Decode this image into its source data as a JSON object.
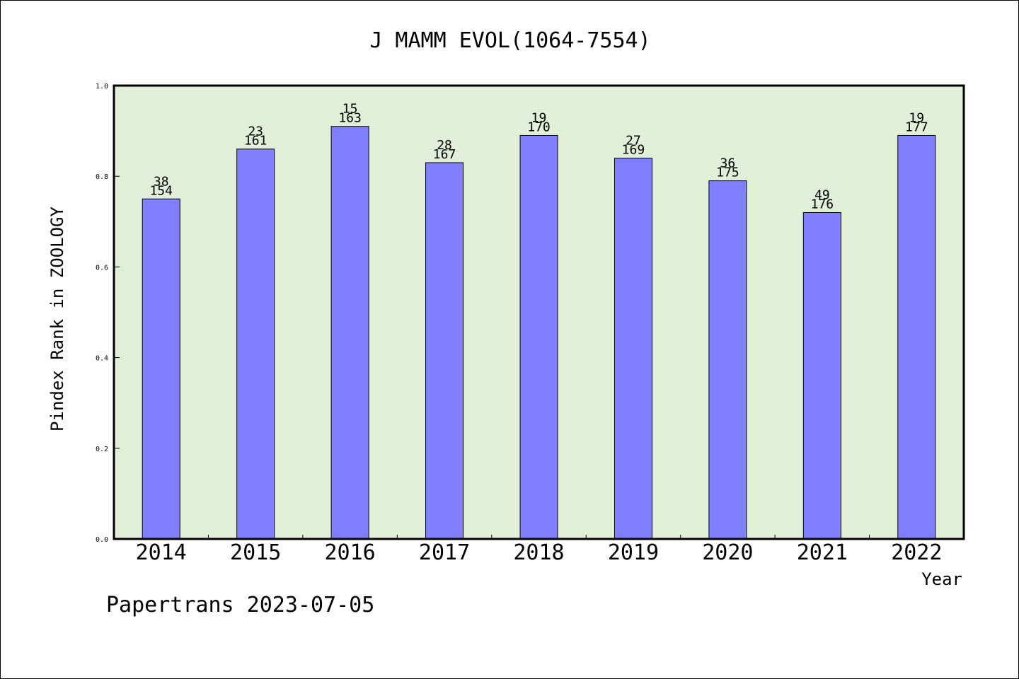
{
  "chart_data": {
    "type": "bar",
    "title": "J MAMM EVOL(1064-7554)",
    "xlabel": "Year",
    "ylabel": "Pindex Rank in ZOOLOGY",
    "ylim": [
      0,
      1.0
    ],
    "yticks": [
      "0.0",
      "0.2",
      "0.4",
      "0.6",
      "0.8",
      "1.0"
    ],
    "categories": [
      "2014",
      "2015",
      "2016",
      "2017",
      "2018",
      "2019",
      "2020",
      "2021",
      "2022"
    ],
    "values": [
      0.75,
      0.86,
      0.91,
      0.83,
      0.89,
      0.84,
      0.79,
      0.72,
      0.89
    ],
    "rank": [
      "38",
      "23",
      "15",
      "28",
      "19",
      "27",
      "36",
      "49",
      "19"
    ],
    "total": [
      "154",
      "161",
      "163",
      "167",
      "170",
      "169",
      "175",
      "176",
      "177"
    ],
    "grid": false,
    "colors": {
      "bar": "#8080ff",
      "plot_bg": "#e2efd8"
    }
  },
  "footer": "Papertrans 2023-07-05"
}
